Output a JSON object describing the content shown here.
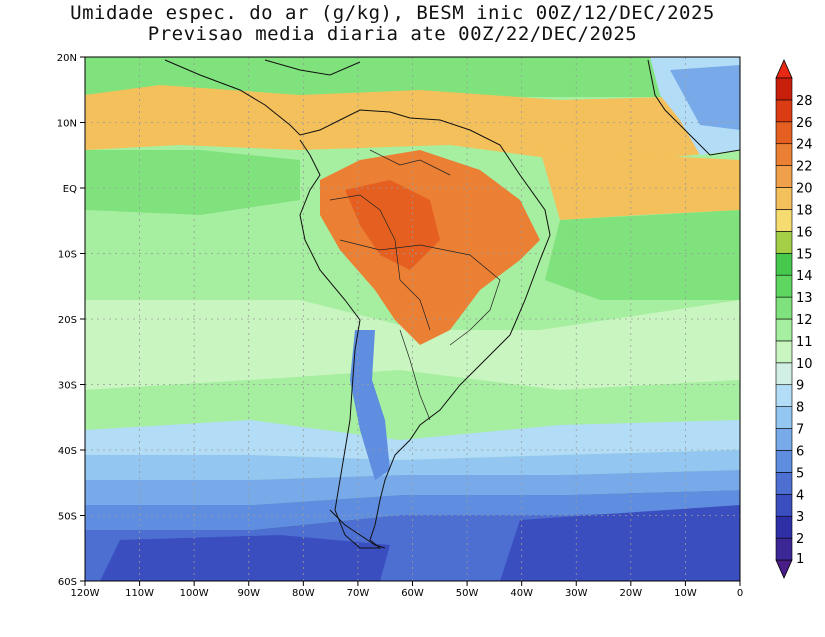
{
  "title_line1": "Umidade espec. do ar (g/kg), BESM inic 00Z/12/DEC/2025",
  "title_line2": "Previsao media diaria ate 00Z/22/DEC/2025",
  "lat_labels": [
    "20N",
    "10N",
    "EQ",
    "10S",
    "20S",
    "30S",
    "40S",
    "50S",
    "60S"
  ],
  "lon_labels": [
    "120W",
    "110W",
    "100W",
    "90W",
    "80W",
    "70W",
    "60W",
    "50W",
    "40W",
    "30W",
    "20W",
    "10W",
    "0"
  ],
  "colorbar": {
    "labels": [
      "1",
      "2",
      "3",
      "4",
      "5",
      "6",
      "7",
      "8",
      "9",
      "10",
      "11",
      "12",
      "13",
      "14",
      "15",
      "16",
      "18",
      "20",
      "22",
      "24",
      "26",
      "28"
    ],
    "colors": [
      "#3c2796",
      "#2f2fa8",
      "#3a4ec0",
      "#4d6fd2",
      "#5f8de0",
      "#78aaea",
      "#94c6f2",
      "#b3ddf6",
      "#d2efe6",
      "#c9f6c0",
      "#a6eea0",
      "#80e27c",
      "#5fd65f",
      "#45c84b",
      "#a4cf47",
      "#f6dc70",
      "#f4c05b",
      "#f0a04b",
      "#eb7f34",
      "#e56020",
      "#dc3c14",
      "#c81e0c"
    ],
    "under_color": "#4a1d88",
    "over_color": "#e62814"
  }
}
